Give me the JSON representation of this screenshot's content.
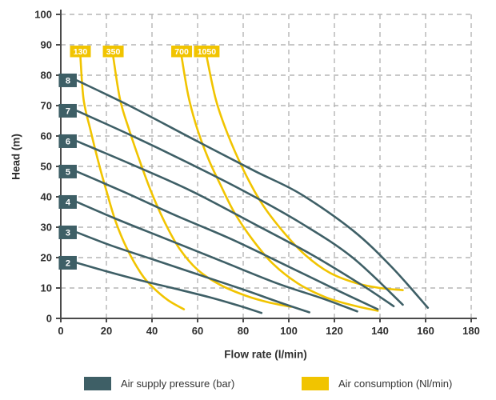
{
  "colors": {
    "pressure": "#3e5f66",
    "consumption": "#f1c400",
    "grid": "#b5b5b5",
    "axis": "#4a4a4a",
    "tick_text": "#2e2e2e",
    "label_text": "#ffffff"
  },
  "axes": {
    "x_title": "Flow rate (l/min)",
    "y_title": "Head (m)"
  },
  "legend": {
    "pressure_label": "Air supply pressure (bar)",
    "consumption_label": "Air consumption (Nl/min)"
  },
  "chart_data": {
    "type": "line",
    "xlabel": "Flow rate (l/min)",
    "ylabel": "Head (m)",
    "xlim": [
      0,
      180
    ],
    "ylim": [
      0,
      100
    ],
    "x_ticks": [
      0,
      20,
      40,
      60,
      80,
      100,
      120,
      140,
      160,
      180
    ],
    "y_ticks": [
      0,
      10,
      20,
      30,
      40,
      50,
      60,
      70,
      80,
      90,
      100
    ],
    "grid": "dashed",
    "legend_position": "bottom",
    "series": [
      {
        "group": "air_consumption_Nl_min",
        "name": "130",
        "points": [
          [
            8.6,
            86
          ],
          [
            10,
            72
          ],
          [
            13,
            62
          ],
          [
            17,
            50
          ],
          [
            20,
            42
          ],
          [
            24,
            32
          ],
          [
            29,
            23
          ],
          [
            35,
            15
          ],
          [
            40,
            10.5
          ],
          [
            47,
            6
          ],
          [
            54,
            3
          ]
        ]
      },
      {
        "group": "air_consumption_Nl_min",
        "name": "350",
        "points": [
          [
            23,
            86
          ],
          [
            26,
            72
          ],
          [
            30,
            62
          ],
          [
            35,
            51
          ],
          [
            40,
            41
          ],
          [
            46,
            31
          ],
          [
            52,
            23
          ],
          [
            60,
            16
          ],
          [
            70,
            11
          ],
          [
            81,
            7.5
          ],
          [
            91,
            5.3
          ],
          [
            101,
            3.8
          ]
        ]
      },
      {
        "group": "air_consumption_Nl_min",
        "name": "700",
        "points": [
          [
            53,
            86
          ],
          [
            56,
            73
          ],
          [
            60,
            62
          ],
          [
            65,
            52
          ],
          [
            70,
            44
          ],
          [
            76,
            35
          ],
          [
            84,
            26
          ],
          [
            93,
            18
          ],
          [
            104,
            11.5
          ],
          [
            116,
            7
          ],
          [
            128,
            4.3
          ],
          [
            139,
            2.5
          ]
        ]
      },
      {
        "group": "air_consumption_Nl_min",
        "name": "1050",
        "points": [
          [
            64,
            86
          ],
          [
            68,
            72
          ],
          [
            73,
            61
          ],
          [
            80,
            49
          ],
          [
            88,
            38
          ],
          [
            97,
            29
          ],
          [
            107,
            21
          ],
          [
            118,
            15
          ],
          [
            130,
            11.5
          ],
          [
            140,
            10
          ],
          [
            150,
            9.3
          ]
        ]
      },
      {
        "group": "air_supply_pressure_bar",
        "name": "2",
        "points": [
          [
            7,
            18.3
          ],
          [
            20,
            15.5
          ],
          [
            35,
            12.5
          ],
          [
            50,
            9.8
          ],
          [
            65,
            7
          ],
          [
            78,
            4.2
          ],
          [
            88,
            1.8
          ]
        ]
      },
      {
        "group": "air_supply_pressure_bar",
        "name": "3",
        "points": [
          [
            7,
            28.3
          ],
          [
            22,
            24
          ],
          [
            40,
            19.5
          ],
          [
            60,
            14.5
          ],
          [
            80,
            9.5
          ],
          [
            97,
            5
          ],
          [
            109,
            2
          ]
        ]
      },
      {
        "group": "air_supply_pressure_bar",
        "name": "4",
        "points": [
          [
            7,
            38.3
          ],
          [
            25,
            32.5
          ],
          [
            45,
            26.5
          ],
          [
            70,
            19
          ],
          [
            95,
            11.5
          ],
          [
            115,
            6.5
          ],
          [
            130,
            2.3
          ]
        ]
      },
      {
        "group": "air_supply_pressure_bar",
        "name": "5",
        "points": [
          [
            7,
            48.3
          ],
          [
            28,
            41.5
          ],
          [
            50,
            34
          ],
          [
            75,
            26
          ],
          [
            100,
            17
          ],
          [
            122,
            9
          ],
          [
            139,
            3
          ]
        ]
      },
      {
        "group": "air_supply_pressure_bar",
        "name": "6",
        "points": [
          [
            7,
            58.3
          ],
          [
            30,
            51
          ],
          [
            57,
            42
          ],
          [
            85,
            31
          ],
          [
            110,
            21
          ],
          [
            132,
            11
          ],
          [
            146,
            4
          ]
        ]
      },
      {
        "group": "air_supply_pressure_bar",
        "name": "7",
        "points": [
          [
            7,
            68.3
          ],
          [
            30,
            60.5
          ],
          [
            55,
            51.5
          ],
          [
            80,
            42
          ],
          [
            105,
            31.5
          ],
          [
            128,
            20
          ],
          [
            150,
            4.5
          ]
        ]
      },
      {
        "group": "air_supply_pressure_bar",
        "name": "8",
        "points": [
          [
            7,
            78.3
          ],
          [
            30,
            70
          ],
          [
            58,
            59
          ],
          [
            85,
            48.5
          ],
          [
            105,
            41
          ],
          [
            128,
            29
          ],
          [
            145,
            17
          ],
          [
            161,
            3.5
          ]
        ]
      }
    ]
  }
}
